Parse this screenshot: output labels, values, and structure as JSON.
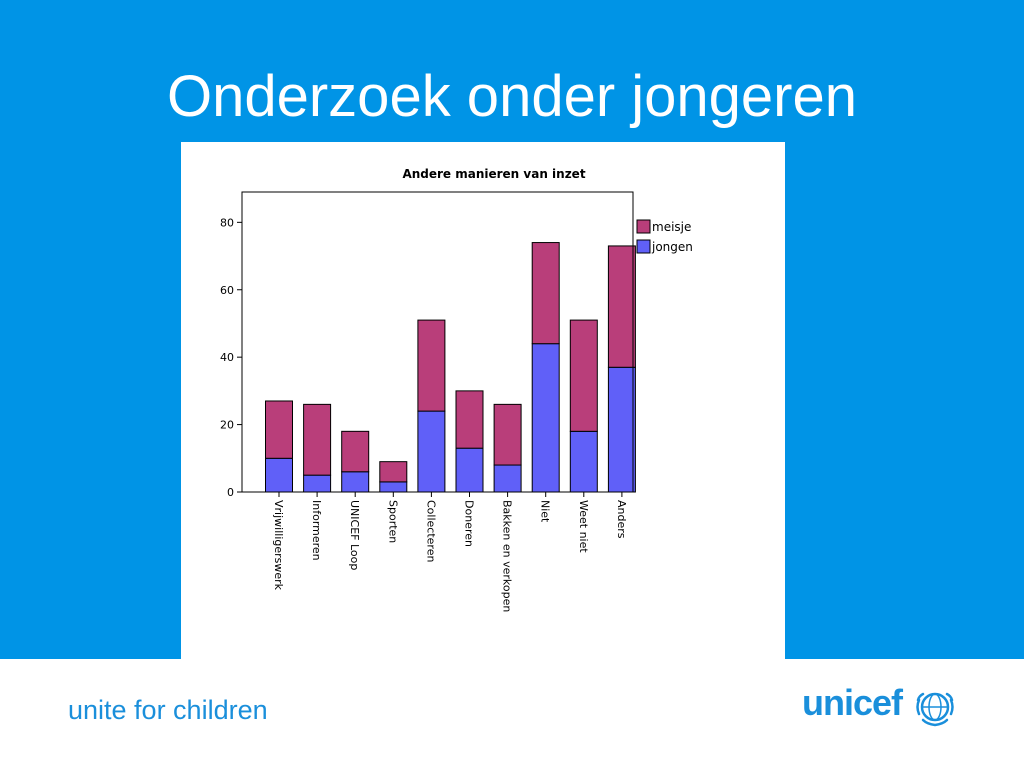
{
  "slide": {
    "title": "Onderzoek onder jongeren",
    "tagline": "unite for children",
    "logo_text": "unicef"
  },
  "colors": {
    "background": "#0094e6",
    "meisje": "#b93e7a",
    "jongen": "#6060f8",
    "brand": "#1a8fdb"
  },
  "chart_data": {
    "type": "bar",
    "stacked": true,
    "title": "Andere manieren van inzet",
    "xlabel": "",
    "ylabel": "",
    "ylim": [
      0,
      89
    ],
    "yticks": [
      0,
      20,
      40,
      60,
      80
    ],
    "grid": false,
    "legend_position": "right",
    "categories": [
      "Vrijwilligerswerk",
      "Informeren",
      "UNICEF Loop",
      "Sporten",
      "Collecteren",
      "Doneren",
      "Bakken en verkopen",
      "Niet",
      "Weet niet",
      "Anders"
    ],
    "series": [
      {
        "name": "jongen",
        "values": [
          10,
          5,
          6,
          3,
          24,
          13,
          8,
          44,
          18,
          37
        ]
      },
      {
        "name": "meisje",
        "values": [
          17,
          21,
          12,
          6,
          27,
          17,
          18,
          30,
          33,
          36
        ]
      }
    ]
  }
}
